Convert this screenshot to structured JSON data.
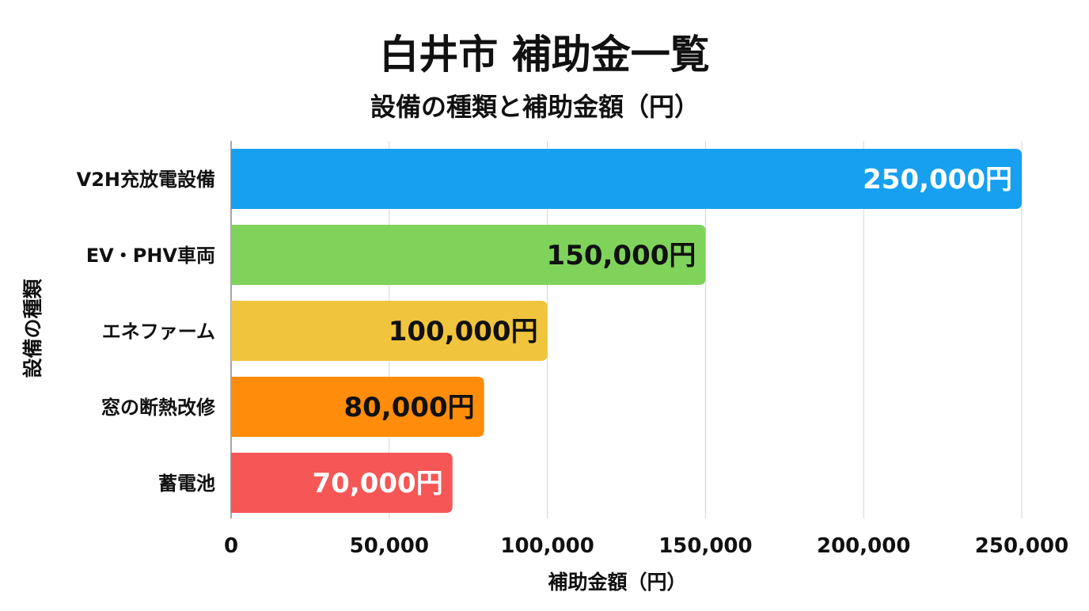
{
  "chart_data": {
    "type": "bar",
    "orientation": "horizontal",
    "title": "白井市 補助金一覧",
    "subtitle": "設備の種類と補助金額（円）",
    "xlabel": "補助金額（円）",
    "ylabel": "設備の種類",
    "xlim": [
      0,
      250000
    ],
    "xticks": [
      0,
      50000,
      100000,
      150000,
      200000,
      250000
    ],
    "xtick_labels": [
      "0",
      "50,000",
      "100,000",
      "150,000",
      "200,000",
      "250,000"
    ],
    "grid": true,
    "categories": [
      "V2H充放電設備",
      "EV・PHV車両",
      "エネファーム",
      "窓の断熱改修",
      "蓄電池"
    ],
    "values": [
      250000,
      150000,
      100000,
      80000,
      70000
    ],
    "data_labels": [
      "250,000円",
      "150,000円",
      "100,000円",
      "80,000円",
      "70,000円"
    ],
    "colors": [
      "#17a0f0",
      "#7fd35b",
      "#f0c43c",
      "#ff8c0a",
      "#f65656"
    ],
    "label_colors": [
      "#ffffff",
      "#111111",
      "#111111",
      "#111111",
      "#ffffff"
    ]
  }
}
